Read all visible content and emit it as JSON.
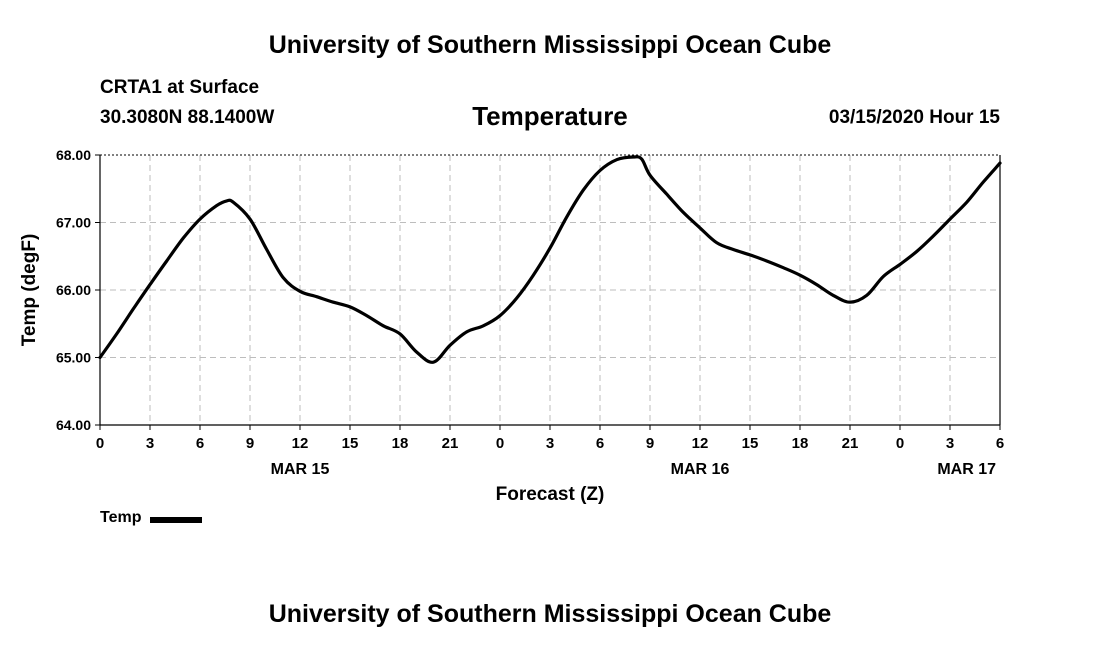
{
  "header": {
    "title": "University of Southern Mississippi Ocean Cube",
    "station": "CRTA1 at Surface",
    "coords": "30.3080N 88.1400W",
    "datetime": "03/15/2020 Hour 15"
  },
  "footer": {
    "title": "University of Southern Mississippi Ocean Cube"
  },
  "chart_data": {
    "type": "line",
    "title": "Temperature",
    "xlabel": "Forecast (Z)",
    "ylabel": "Temp (degF)",
    "ylim": [
      64.0,
      68.0
    ],
    "xlim": [
      0,
      54
    ],
    "x_unit": "forecast hours from 2020-03-15 00Z",
    "yticks": [
      "64.00",
      "65.00",
      "66.00",
      "67.00",
      "68.00"
    ],
    "xticks": [
      {
        "x": 0,
        "label": "0"
      },
      {
        "x": 3,
        "label": "3"
      },
      {
        "x": 6,
        "label": "6"
      },
      {
        "x": 9,
        "label": "9"
      },
      {
        "x": 12,
        "label": "12"
      },
      {
        "x": 15,
        "label": "15"
      },
      {
        "x": 18,
        "label": "18"
      },
      {
        "x": 21,
        "label": "21"
      },
      {
        "x": 24,
        "label": "0"
      },
      {
        "x": 27,
        "label": "3"
      },
      {
        "x": 30,
        "label": "6"
      },
      {
        "x": 33,
        "label": "9"
      },
      {
        "x": 36,
        "label": "12"
      },
      {
        "x": 39,
        "label": "15"
      },
      {
        "x": 42,
        "label": "18"
      },
      {
        "x": 45,
        "label": "21"
      },
      {
        "x": 48,
        "label": "0"
      },
      {
        "x": 51,
        "label": "3"
      },
      {
        "x": 54,
        "label": "6"
      }
    ],
    "date_labels": [
      {
        "x": 12,
        "label": "MAR 15"
      },
      {
        "x": 36,
        "label": "MAR 16"
      },
      {
        "x": 52,
        "label": "MAR 17"
      }
    ],
    "grid": true,
    "legend_position": "bottom-left",
    "series": [
      {
        "name": "Temp",
        "color": "#000000",
        "x": [
          0,
          1,
          2,
          3,
          4,
          5,
          6,
          7,
          7.6,
          8,
          9,
          10,
          11,
          12,
          13,
          14,
          15,
          16,
          17,
          18,
          19,
          20,
          21,
          22,
          23,
          24,
          25,
          26,
          27,
          28,
          29,
          30,
          31,
          32,
          32.5,
          33,
          34,
          35,
          36,
          37,
          38,
          39,
          40,
          41,
          42,
          43,
          44,
          45,
          46,
          47,
          48,
          49,
          50,
          51,
          52,
          53,
          54
        ],
        "y": [
          65.0,
          65.35,
          65.72,
          66.08,
          66.43,
          66.77,
          67.05,
          67.25,
          67.32,
          67.3,
          67.05,
          66.6,
          66.18,
          65.98,
          65.9,
          65.82,
          65.75,
          65.62,
          65.47,
          65.35,
          65.08,
          64.93,
          65.18,
          65.38,
          65.47,
          65.62,
          65.88,
          66.22,
          66.62,
          67.08,
          67.48,
          67.77,
          67.93,
          67.97,
          67.94,
          67.7,
          67.42,
          67.15,
          66.92,
          66.7,
          66.6,
          66.52,
          66.43,
          66.33,
          66.22,
          66.08,
          65.92,
          65.82,
          65.92,
          66.2,
          66.38,
          66.57,
          66.8,
          67.05,
          67.3,
          67.6,
          67.88
        ]
      }
    ]
  }
}
